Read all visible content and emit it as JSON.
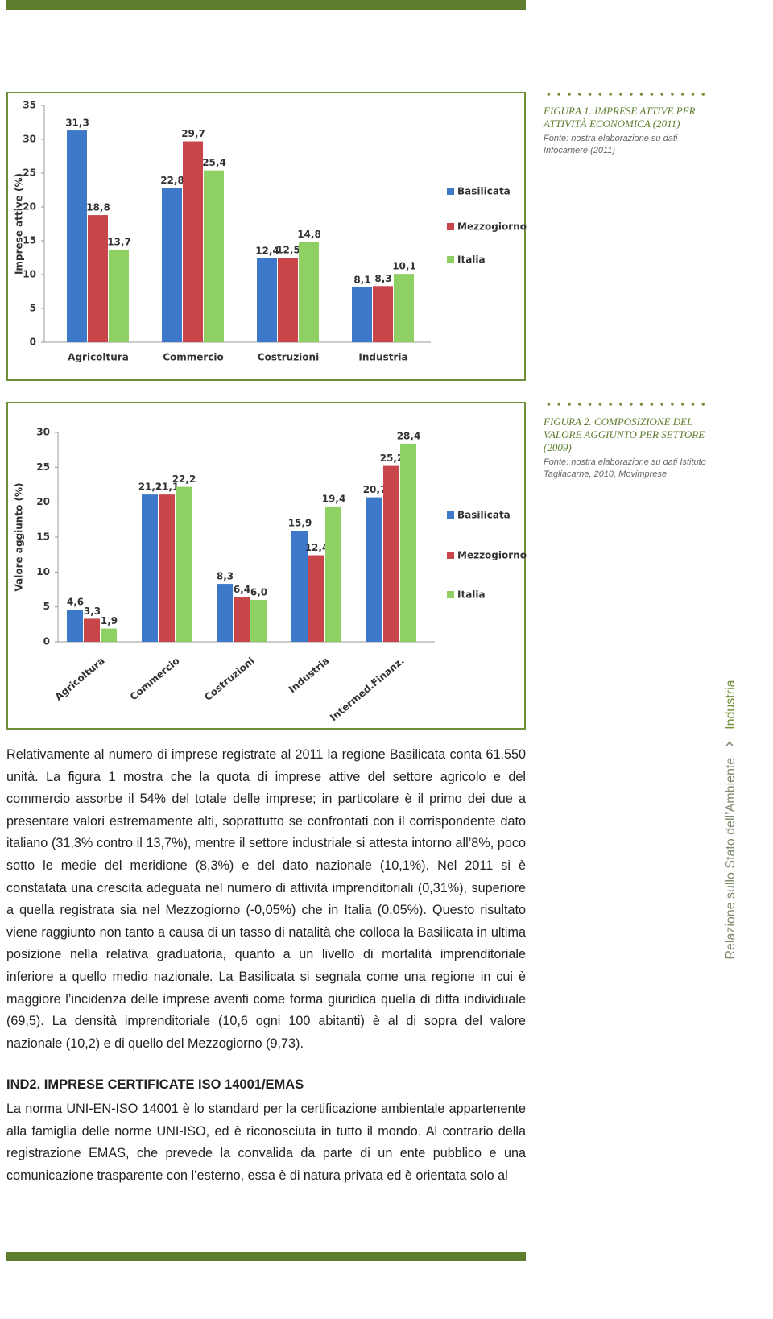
{
  "chart_data": [
    {
      "type": "bar",
      "y_label": "Imprese attive (%)",
      "categories": [
        "Agricoltura",
        "Commercio",
        "Costruzioni",
        "Industria"
      ],
      "series": [
        {
          "name": "Basilicata",
          "color": "#3e78c8",
          "values": [
            31.3,
            22.8,
            12.4,
            8.1
          ],
          "value_labels": [
            "31,3",
            "22,8",
            "12,4",
            "8,1"
          ]
        },
        {
          "name": "Mezzogiorno",
          "color": "#c8464a",
          "values": [
            18.8,
            29.7,
            12.5,
            8.3
          ],
          "value_labels": [
            "18,8",
            "29,7",
            "12,5",
            "8,3"
          ]
        },
        {
          "name": "Italia",
          "color": "#8fd064",
          "values": [
            13.7,
            25.4,
            14.8,
            10.1
          ],
          "value_labels": [
            "13,7",
            "25,4",
            "14,8",
            "10,1"
          ]
        }
      ],
      "ylim": [
        0,
        35
      ],
      "yticks": [
        0,
        5,
        10,
        15,
        20,
        25,
        30,
        35
      ],
      "grid": false,
      "legend": "right"
    },
    {
      "type": "bar",
      "y_label": "Valore aggiunto (%)",
      "categories": [
        "Agricoltura",
        "Commercio",
        "Costruzioni",
        "Industria",
        "Intermed.Finanz."
      ],
      "series": [
        {
          "name": "Basilicata",
          "color": "#3e78c8",
          "values": [
            4.6,
            21.1,
            8.3,
            15.9,
            20.7
          ],
          "value_labels": [
            "4,6",
            "21,1",
            "8,3",
            "15,9",
            "20,7"
          ]
        },
        {
          "name": "Mezzogiorno",
          "color": "#c8464a",
          "values": [
            3.3,
            21.1,
            6.4,
            12.4,
            25.2
          ],
          "value_labels": [
            "3,3",
            "21,1",
            "6,4",
            "12,4",
            "25,2"
          ]
        },
        {
          "name": "Italia",
          "color": "#8fd064",
          "values": [
            1.9,
            22.2,
            6.0,
            19.4,
            28.4
          ],
          "value_labels": [
            "1,9",
            "22,2",
            "6,0",
            "19,4",
            "28,4"
          ]
        }
      ],
      "ylim": [
        0,
        30
      ],
      "yticks": [
        0,
        5,
        10,
        15,
        20,
        25,
        30
      ],
      "grid": false,
      "legend": "right"
    }
  ],
  "captions": [
    {
      "title": "FIGURA 1. IMPRESE ATTIVE PER ATTIVITÀ ECONOMICA (2011)",
      "source": "Fonte: nostra elaborazione su dati Infocamere (2011)"
    },
    {
      "title": "FIGURA 2. COMPOSIZIONE DEL VALORE AGGIUNTO PER SETTORE (2009)",
      "source": "Fonte: nostra elaborazione su dati Istituto Tagliacarne, 2010, Movimprese"
    }
  ],
  "body": {
    "paragraph": "Relativamente al numero di imprese registrate al 2011 la regione Basilicata conta 61.550 unità. La figura 1 mostra che la quota di imprese attive del settore agricolo e del commercio assorbe il 54% del totale delle imprese; in particolare è il primo dei due a presentare valori estremamente alti, soprattutto se confrontati con il corrispondente dato italiano (31,3% contro il 13,7%), mentre il settore industriale si attesta intorno all’8%, poco sotto le medie del meridione (8,3%) e del dato nazionale (10,1%). Nel 2011 si è constatata una crescita adeguata nel numero di attività imprenditoriali (0,31%), superiore a quella registrata sia nel Mezzogiorno (-0,05%) che in Italia (0,05%). Questo risultato viene raggiunto non tanto a causa di un tasso di natalità che colloca la Basilicata in ultima posizione nella relativa graduatoria, quanto a un livello di mortalità imprenditoriale inferiore a quello medio nazionale. La Basilicata si segnala come una regione in cui è maggiore l’incidenza delle imprese aventi come forma giuridica quella di ditta individuale (69,5). La densità imprenditoriale (10,6 ogni 100 abitanti) è al di sopra del valore nazionale (10,2) e di quello del Mezzogiorno (9,73).",
    "heading": "IND2. IMPRESE CERTIFICATE ISO 14001/EMAS",
    "paragraph2": "La norma UNI-EN-ISO 14001 è lo standard per la certificazione ambientale appartenente alla famiglia delle norme UNI-ISO, ed è riconosciuta in tutto il mondo. Al contrario della registrazione EMAS, che prevede la convalida da parte di un ente pubblico e una comunicazione trasparente con l’esterno, essa è di natura privata ed è orientata solo al"
  },
  "side": {
    "publication": "Relazione sullo Stato dell’Ambiente",
    "section": "Industria"
  }
}
